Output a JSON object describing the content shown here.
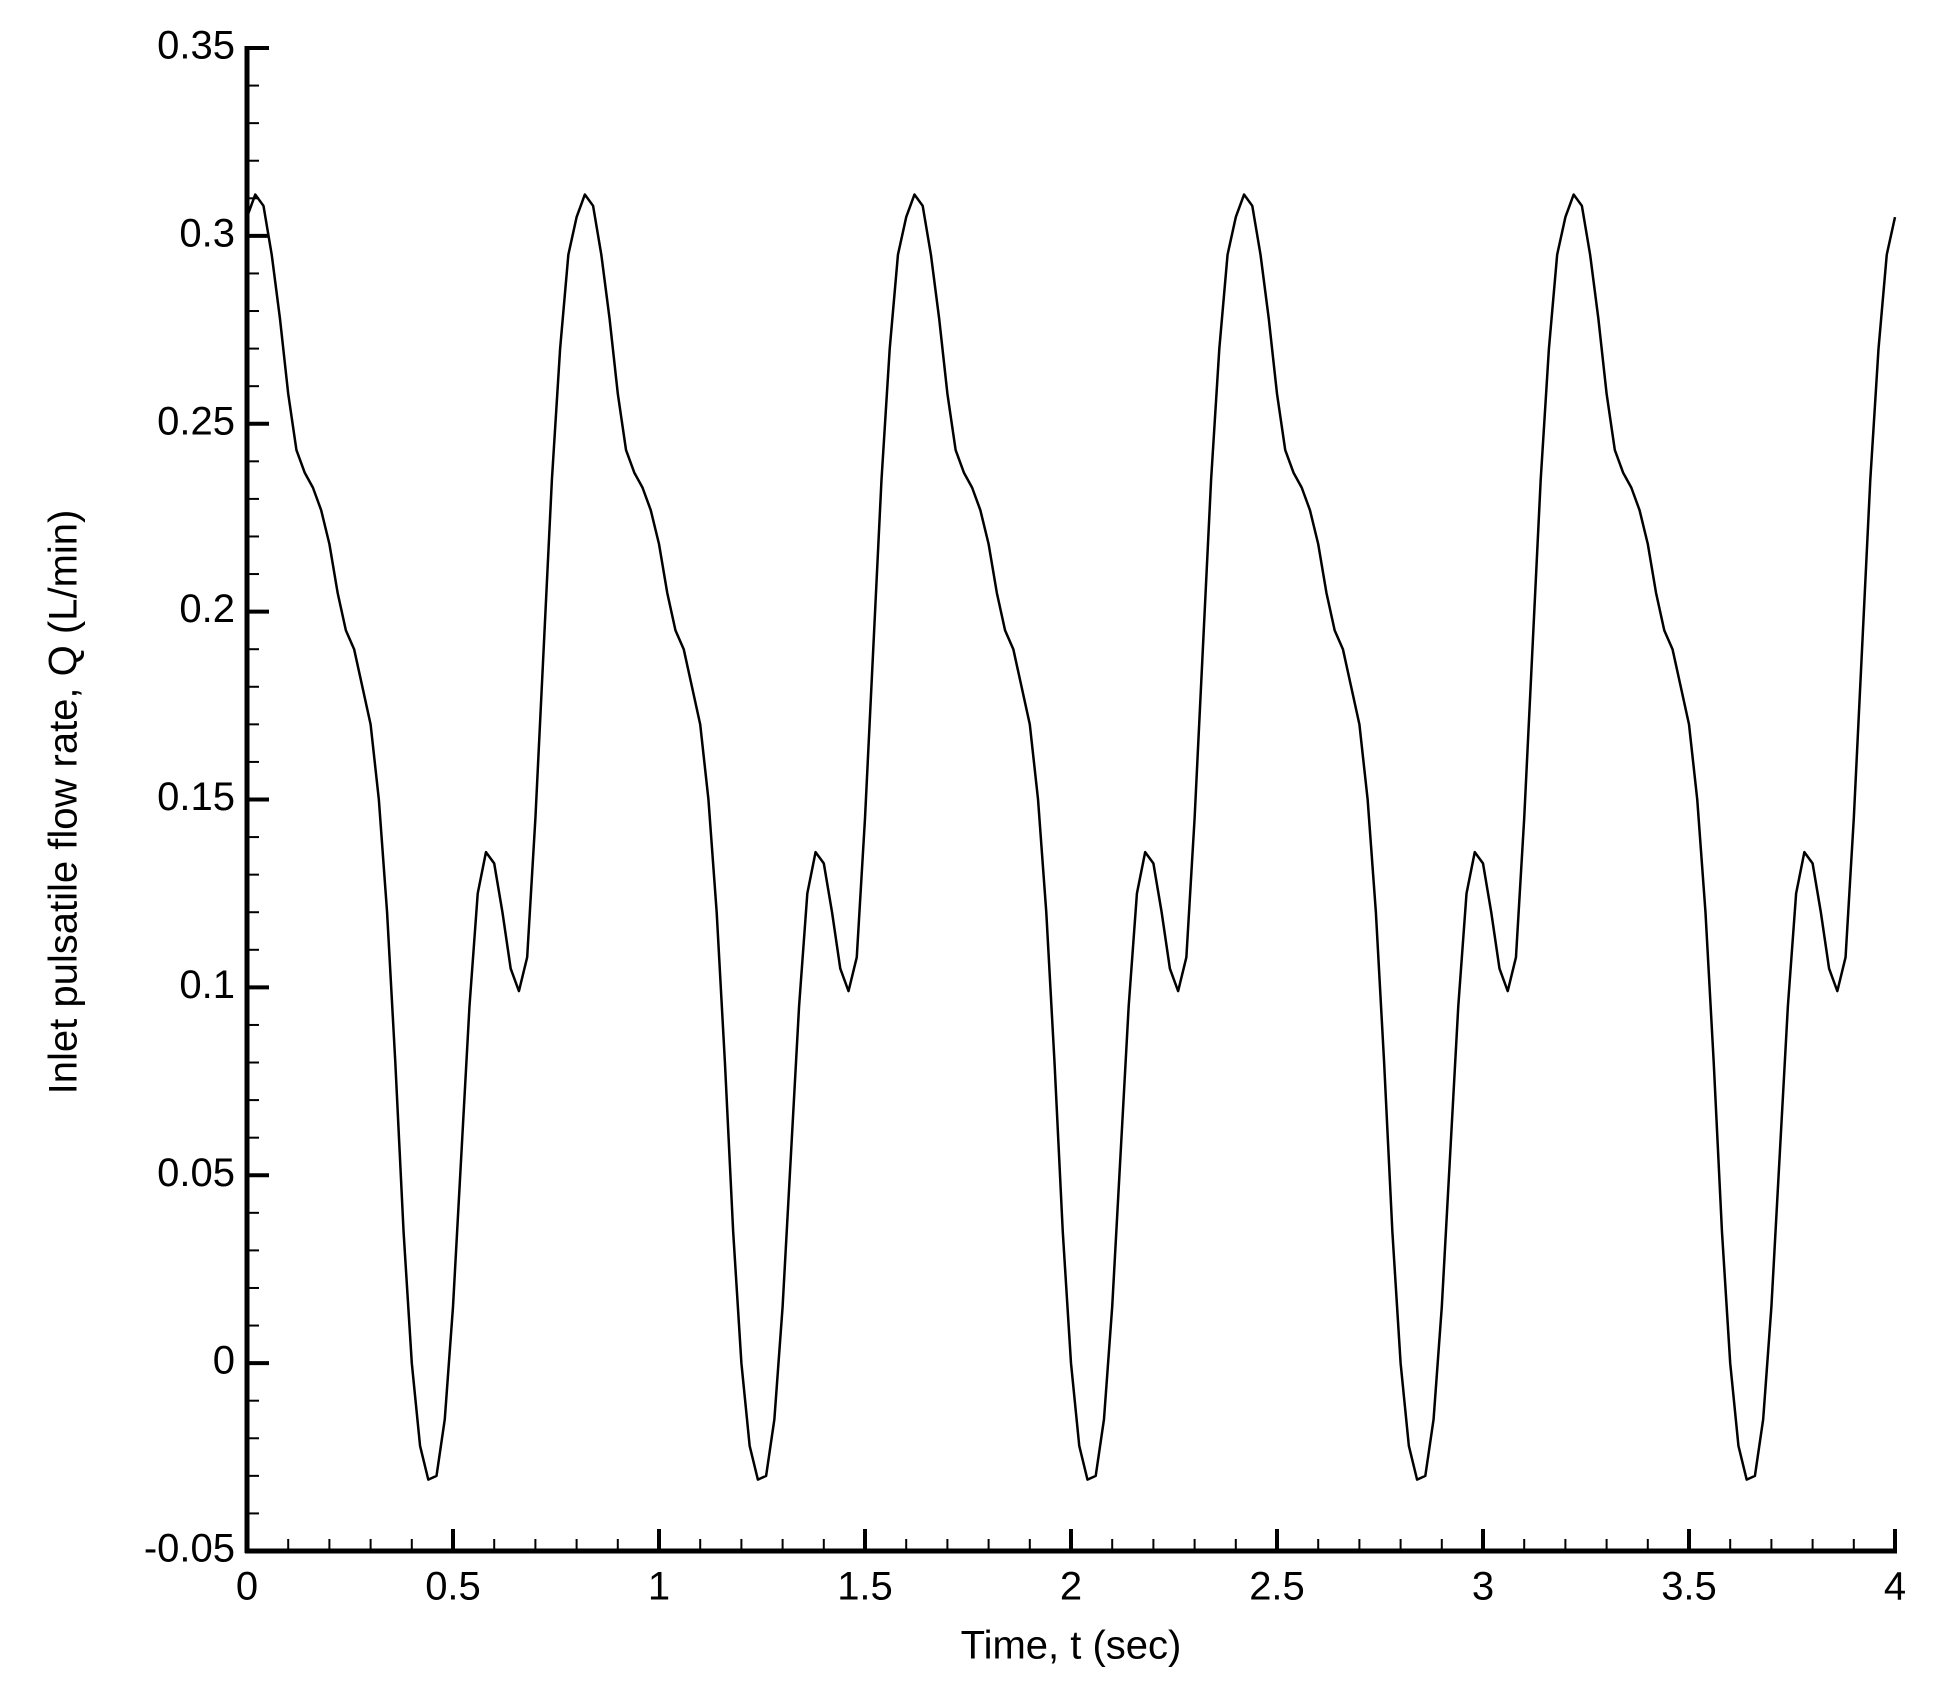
{
  "chart_data": {
    "type": "line",
    "xlabel": "Time, t (sec)",
    "ylabel": "Inlet pulsatile flow rate, Q (L/min)",
    "color": "#000000",
    "x": [
      0,
      0.02,
      0.04,
      0.06,
      0.08,
      0.1,
      0.12,
      0.14,
      0.16,
      0.18,
      0.2,
      0.22,
      0.24,
      0.26,
      0.28,
      0.3,
      0.32,
      0.34,
      0.36,
      0.38,
      0.4,
      0.42,
      0.44,
      0.46,
      0.48,
      0.5,
      0.52,
      0.54,
      0.56,
      0.58,
      0.6,
      0.62,
      0.64,
      0.66,
      0.68,
      0.7,
      0.72,
      0.74,
      0.76,
      0.78,
      0.8,
      0.82,
      0.84,
      0.86,
      0.88,
      0.9,
      0.92,
      0.94,
      0.96,
      0.98,
      1,
      1.02,
      1.04,
      1.06,
      1.08,
      1.1,
      1.12,
      1.14,
      1.16,
      1.18,
      1.2,
      1.22,
      1.24,
      1.26,
      1.28,
      1.3,
      1.32,
      1.34,
      1.36,
      1.38,
      1.4,
      1.42,
      1.44,
      1.46,
      1.48,
      1.5,
      1.52,
      1.54,
      1.56,
      1.58,
      1.6,
      1.62,
      1.64,
      1.66,
      1.68,
      1.7,
      1.72,
      1.74,
      1.76,
      1.78,
      1.8,
      1.82,
      1.84,
      1.86,
      1.88,
      1.9,
      1.92,
      1.94,
      1.96,
      1.98,
      2,
      2.02,
      2.04,
      2.06,
      2.08,
      2.1,
      2.12,
      2.14,
      2.16,
      2.18,
      2.2,
      2.22,
      2.24,
      2.26,
      2.28,
      2.3,
      2.32,
      2.34,
      2.36,
      2.38,
      2.4,
      2.42,
      2.44,
      2.46,
      2.48,
      2.5,
      2.52,
      2.54,
      2.56,
      2.58,
      2.6,
      2.62,
      2.64,
      2.66,
      2.68,
      2.7,
      2.72,
      2.74,
      2.76,
      2.78,
      2.8,
      2.82,
      2.84,
      2.86,
      2.88,
      2.9,
      2.92,
      2.94,
      2.96,
      2.98,
      3,
      3.02,
      3.04,
      3.06,
      3.08,
      3.1,
      3.12,
      3.14,
      3.16,
      3.18,
      3.2,
      3.22,
      3.24,
      3.26,
      3.28,
      3.3,
      3.32,
      3.34,
      3.36,
      3.38,
      3.4,
      3.42,
      3.44,
      3.46,
      3.48,
      3.5,
      3.52,
      3.54,
      3.56,
      3.58,
      3.6,
      3.62,
      3.64,
      3.66,
      3.68,
      3.7,
      3.72,
      3.74,
      3.76,
      3.78,
      3.8,
      3.82,
      3.84,
      3.86,
      3.88,
      3.9,
      3.92,
      3.94,
      3.96,
      3.98,
      4
    ],
    "values": [
      0.305,
      0.311,
      0.308,
      0.295,
      0.278,
      0.258,
      0.243,
      0.237,
      0.233,
      0.227,
      0.218,
      0.205,
      0.195,
      0.19,
      0.18,
      0.17,
      0.15,
      0.12,
      0.08,
      0.035,
      0,
      -0.022,
      -0.031,
      -0.03,
      -0.015,
      0.015,
      0.055,
      0.095,
      0.125,
      0.136,
      0.133,
      0.12,
      0.105,
      0.099,
      0.108,
      0.145,
      0.19,
      0.235,
      0.27,
      0.295,
      0.305,
      0.311,
      0.308,
      0.295,
      0.278,
      0.258,
      0.243,
      0.237,
      0.233,
      0.227,
      0.218,
      0.205,
      0.195,
      0.19,
      0.18,
      0.17,
      0.15,
      0.12,
      0.08,
      0.035,
      0,
      -0.022,
      -0.031,
      -0.03,
      -0.015,
      0.015,
      0.055,
      0.095,
      0.125,
      0.136,
      0.133,
      0.12,
      0.105,
      0.099,
      0.108,
      0.145,
      0.19,
      0.235,
      0.27,
      0.295,
      0.305,
      0.311,
      0.308,
      0.295,
      0.278,
      0.258,
      0.243,
      0.237,
      0.233,
      0.227,
      0.218,
      0.205,
      0.195,
      0.19,
      0.18,
      0.17,
      0.15,
      0.12,
      0.08,
      0.035,
      0,
      -0.022,
      -0.031,
      -0.03,
      -0.015,
      0.015,
      0.055,
      0.095,
      0.125,
      0.136,
      0.133,
      0.12,
      0.105,
      0.099,
      0.108,
      0.145,
      0.19,
      0.235,
      0.27,
      0.295,
      0.305,
      0.311,
      0.308,
      0.295,
      0.278,
      0.258,
      0.243,
      0.237,
      0.233,
      0.227,
      0.218,
      0.205,
      0.195,
      0.19,
      0.18,
      0.17,
      0.15,
      0.12,
      0.08,
      0.035,
      0,
      -0.022,
      -0.031,
      -0.03,
      -0.015,
      0.015,
      0.055,
      0.095,
      0.125,
      0.136,
      0.133,
      0.12,
      0.105,
      0.099,
      0.108,
      0.145,
      0.19,
      0.235,
      0.27,
      0.295,
      0.305,
      0.311,
      0.308,
      0.295,
      0.278,
      0.258,
      0.243,
      0.237,
      0.233,
      0.227,
      0.218,
      0.205,
      0.195,
      0.19,
      0.18,
      0.17,
      0.15,
      0.12,
      0.08,
      0.035,
      0,
      -0.022,
      -0.031,
      -0.03,
      -0.015,
      0.015,
      0.055,
      0.095,
      0.125,
      0.136,
      0.133,
      0.12,
      0.105,
      0.099,
      0.108,
      0.145,
      0.19,
      0.235,
      0.27,
      0.295,
      0.305
    ],
    "xlim": [
      0,
      4
    ],
    "xticks": [
      0,
      0.5,
      1,
      1.5,
      2,
      2.5,
      3,
      3.5,
      4
    ],
    "ylim": [
      -0.05,
      0.35
    ],
    "yticks": [
      -0.05,
      0,
      0.05,
      0.1,
      0.15,
      0.2,
      0.25,
      0.3,
      0.35
    ],
    "minor_per_major": 5,
    "grid": false
  }
}
